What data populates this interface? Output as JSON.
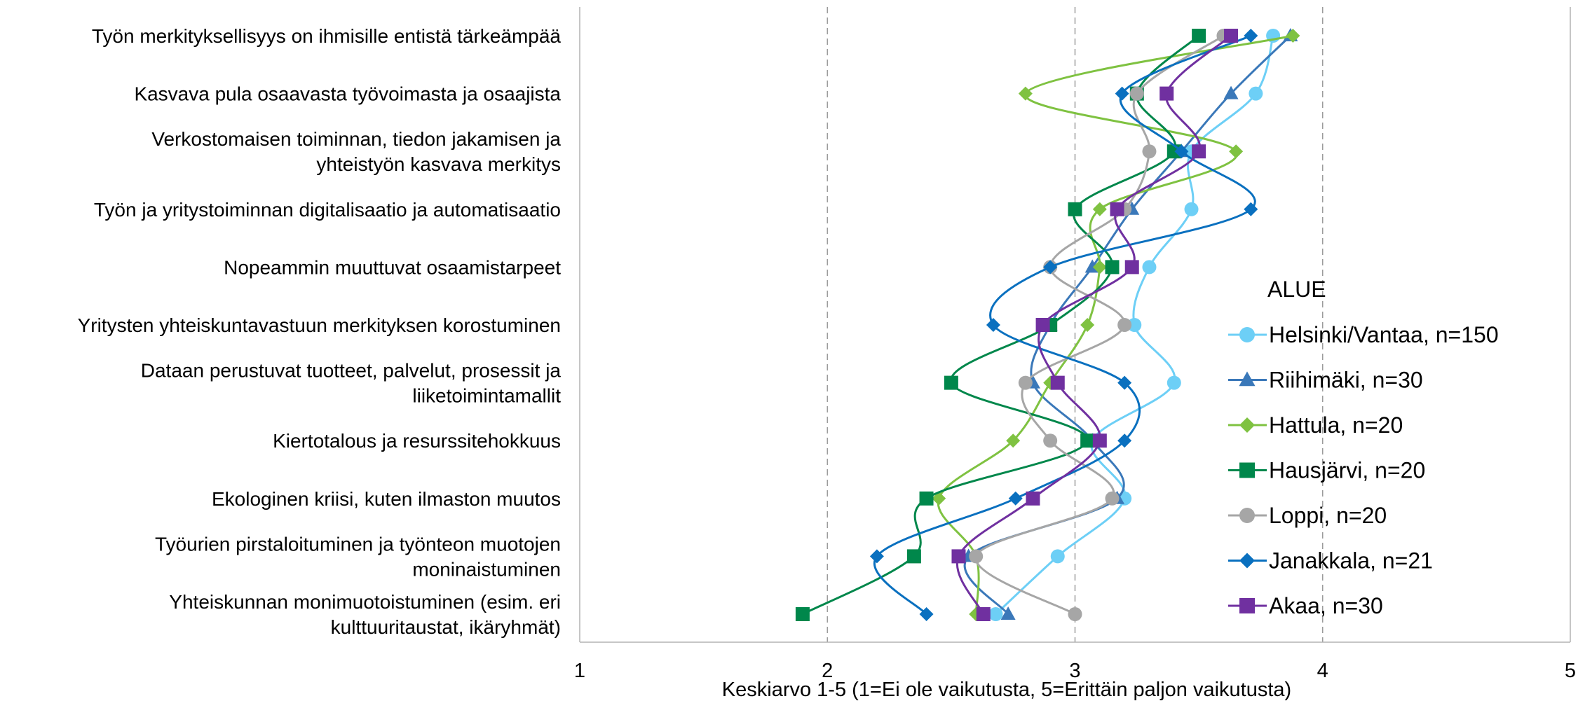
{
  "chart_data": {
    "type": "line",
    "orientation": "horizontal",
    "smooth": true,
    "title": "",
    "xlabel": "Keskiarvo 1-5 (1=Ei ole vaikutusta, 5=Erittäin paljon vaikutusta)",
    "xlim": [
      1,
      5
    ],
    "xticks": [
      1,
      2,
      3,
      4,
      5
    ],
    "grid": "vertical dashed",
    "legend_title": "ALUE",
    "legend_position": "right",
    "categories": [
      [
        "Työn merkityksellisyys on ihmisille entistä tärkeämpää"
      ],
      [
        "Kasvava pula osaavasta työvoimasta ja osaajista"
      ],
      [
        "Verkostomaisen toiminnan, tiedon jakamisen ja",
        "yhteistyön kasvava merkitys"
      ],
      [
        "Työn ja yritystoiminnan digitalisaatio ja automatisaatio"
      ],
      [
        "Nopeammin muuttuvat osaamistarpeet"
      ],
      [
        "Yritysten yhteiskuntavastuun merkityksen korostuminen"
      ],
      [
        "Dataan perustuvat tuotteet, palvelut, prosessit ja",
        "liiketoimintamallit"
      ],
      [
        "Kiertotalous ja resurssitehokkuus"
      ],
      [
        "Ekologinen kriisi, kuten ilmaston muutos"
      ],
      [
        "Työurien pirstaloituminen ja työnteon muotojen",
        "moninaistuminen"
      ],
      [
        "Yhteiskunnan monimuotoistuminen (esim. eri",
        "kulttuuritaustat, ikäryhmät)"
      ]
    ],
    "series": [
      {
        "name": "Helsinki/Vantaa, n=150",
        "color": "#6dcff6",
        "marker": "circle",
        "values": [
          3.8,
          3.73,
          3.47,
          3.47,
          3.3,
          3.24,
          3.4,
          3.07,
          3.2,
          2.93,
          2.68
        ]
      },
      {
        "name": "Riihimäki, n=30",
        "color": "#3a78b9",
        "marker": "triangle",
        "values": [
          3.87,
          3.63,
          3.43,
          3.23,
          3.07,
          2.9,
          2.83,
          3.07,
          3.17,
          2.57,
          2.73
        ]
      },
      {
        "name": "Hattula, n=20",
        "color": "#7fc241",
        "marker": "diamond",
        "values": [
          3.88,
          2.8,
          3.65,
          3.1,
          3.1,
          3.05,
          2.9,
          2.75,
          2.45,
          2.6,
          2.6
        ]
      },
      {
        "name": "Hausjärvi, n=20",
        "color": "#00874b",
        "marker": "square",
        "values": [
          3.5,
          3.25,
          3.4,
          3.0,
          3.15,
          2.9,
          2.5,
          3.05,
          2.4,
          2.35,
          1.9
        ]
      },
      {
        "name": "Loppi, n=20",
        "color": "#a6a6a6",
        "marker": "circle",
        "values": [
          3.6,
          3.25,
          3.3,
          3.2,
          2.9,
          3.2,
          2.8,
          2.9,
          3.15,
          2.6,
          3.0
        ]
      },
      {
        "name": "Janakkala, n=21",
        "color": "#0a70bf",
        "marker": "diamond",
        "values": [
          3.71,
          3.19,
          3.43,
          3.71,
          2.9,
          2.67,
          3.2,
          3.2,
          2.76,
          2.2,
          2.4
        ]
      },
      {
        "name": "Akaa, n=30",
        "color": "#7030a0",
        "marker": "square",
        "values": [
          3.63,
          3.37,
          3.5,
          3.17,
          3.23,
          2.87,
          2.93,
          3.1,
          2.83,
          2.53,
          2.63
        ]
      }
    ]
  }
}
